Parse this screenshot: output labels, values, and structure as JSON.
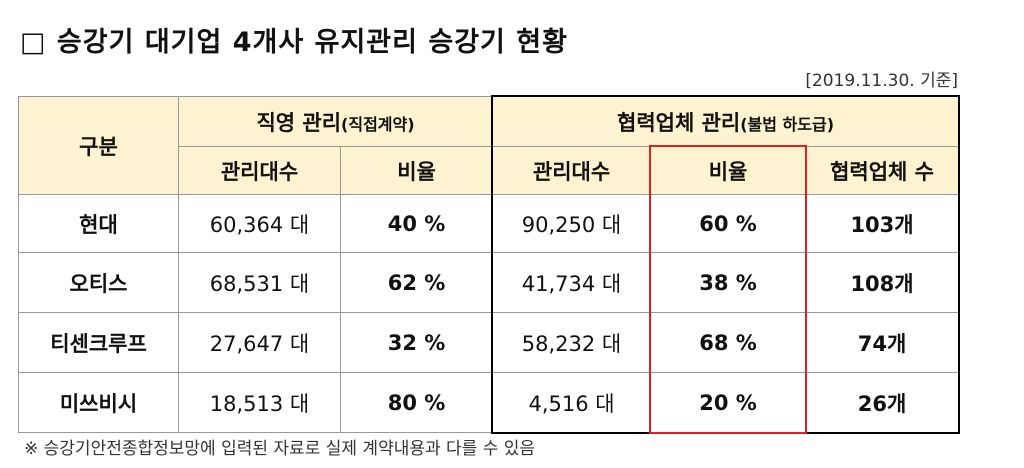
{
  "title": "□ 승강기 대기업 4개사 유지관리 승강기 현황",
  "date_note": "[2019.11.30. 기준]",
  "table": {
    "header": {
      "category": "구분",
      "group1": {
        "label": "직영 관리",
        "sub": "(직접계약)"
      },
      "group2": {
        "label": "협력업체 관리",
        "sub": "(불법 하도급)"
      },
      "columns": [
        "관리대수",
        "비율",
        "관리대수",
        "비율",
        "협력업체 수"
      ]
    },
    "rows": [
      [
        "현대",
        "60,364 대",
        "40 %",
        "90,250 대",
        "60 %",
        "103개"
      ],
      [
        "오티스",
        "68,531 대",
        "62 %",
        "41,734 대",
        "38 %",
        "108개"
      ],
      [
        "티센크루프",
        "27,647 대",
        "32 %",
        "58,232 대",
        "68 %",
        "74개"
      ],
      [
        "미쓰비시",
        "18,513 대",
        "80 %",
        "4,516 대",
        "20 %",
        "26개"
      ]
    ]
  },
  "footnote": "※ 승강기안전종합정보망에 입력된 자료로 실제 계약내용과 다를 수 있음"
}
